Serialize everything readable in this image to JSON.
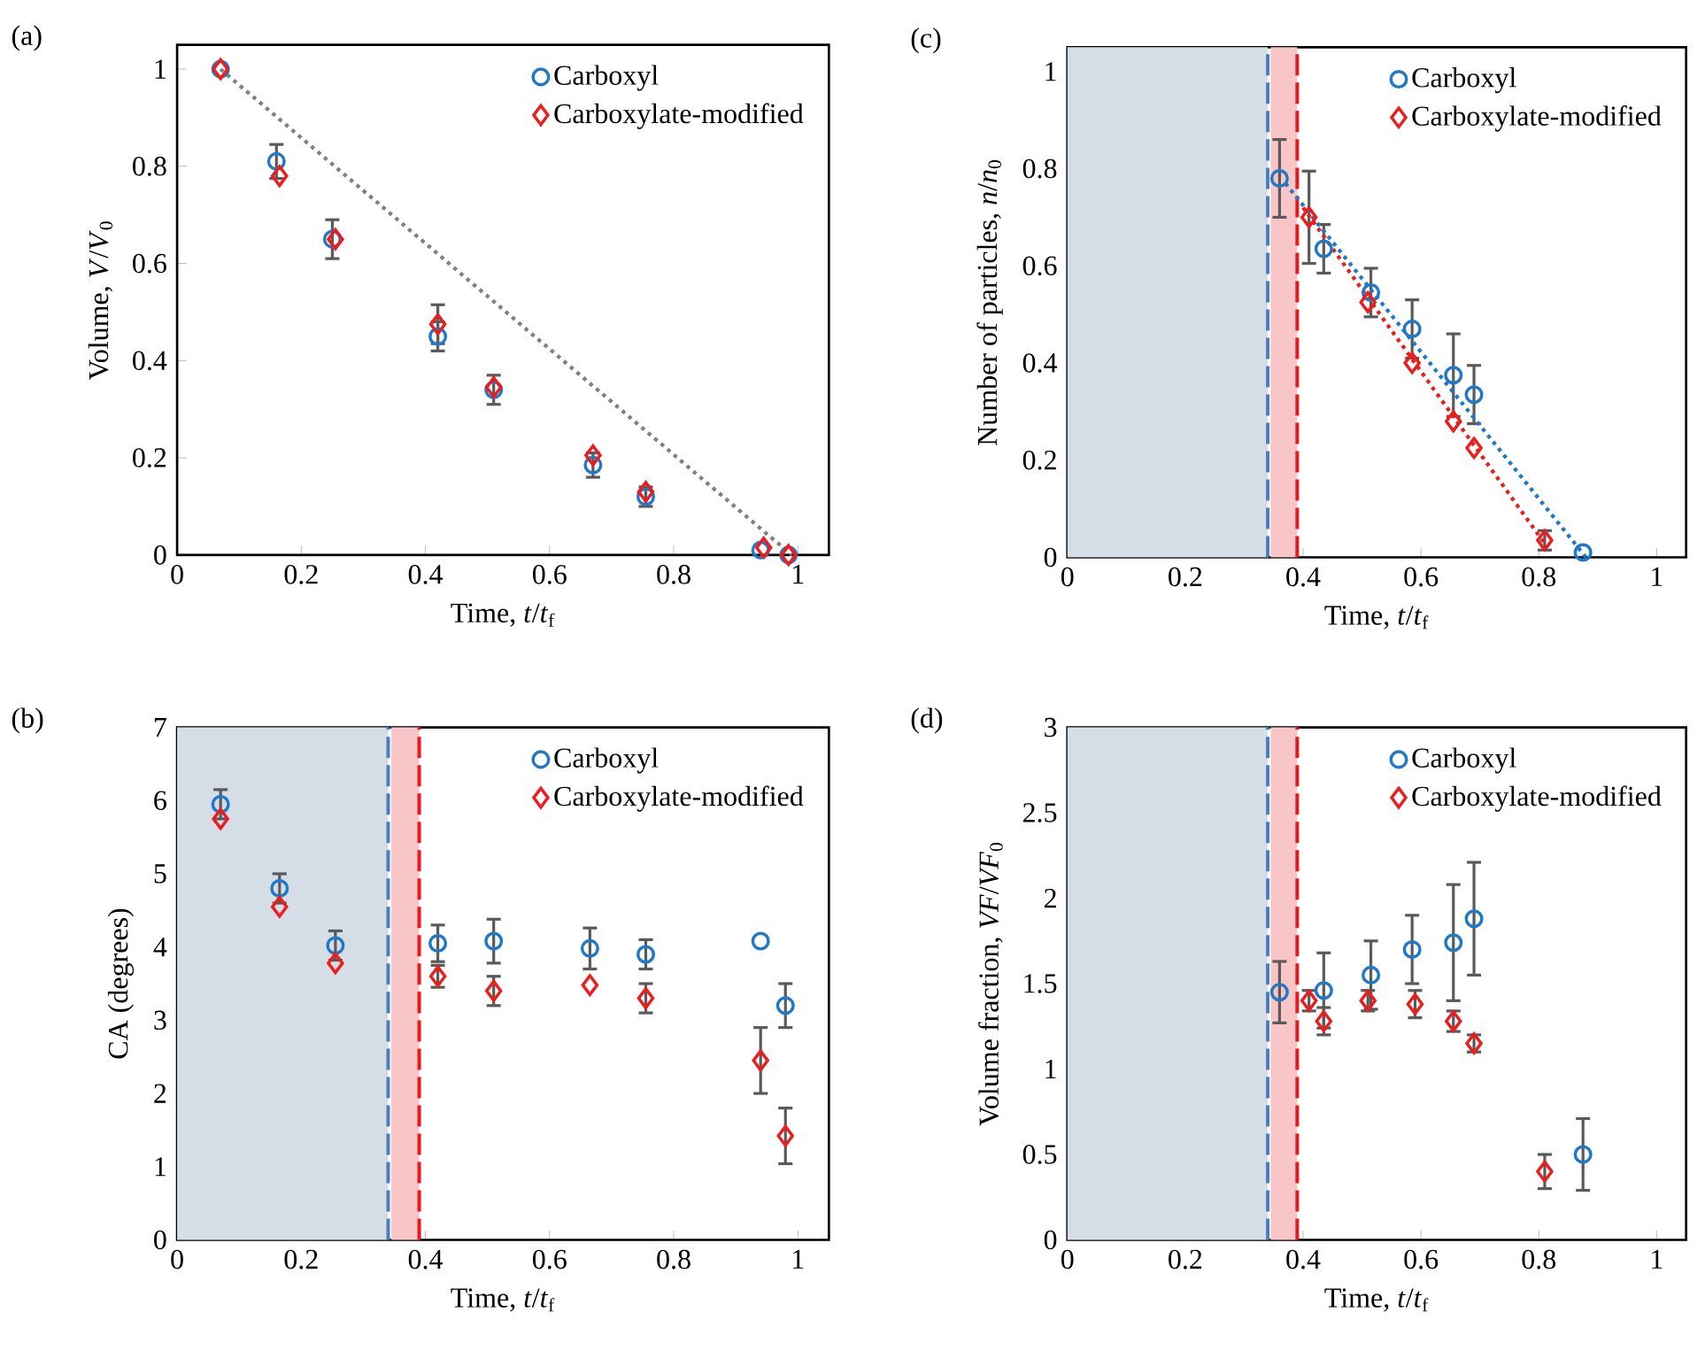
{
  "chart_data": [
    {
      "type": "scatter",
      "title": "(a)",
      "xlabel": "Time, *t*/*t*$_{f}$",
      "ylabel": "Volume, *V*/*V*$_{0}$",
      "xlim": [
        0,
        1.05
      ],
      "ylim": [
        0,
        1.05
      ],
      "xticks": [
        0,
        0.2,
        0.4,
        0.6,
        0.8,
        1
      ],
      "yticks": [
        0,
        0.2,
        0.4,
        0.6,
        0.8,
        1
      ],
      "legend": "top right",
      "series": [
        {
          "name": "Carboxyl",
          "color": "#1f78c8",
          "marker": "circle",
          "x": [
            0.07,
            0.16,
            0.25,
            0.42,
            0.51,
            0.67,
            0.755,
            0.94,
            0.985
          ],
          "values": [
            1.0,
            0.81,
            0.65,
            0.45,
            0.34,
            0.185,
            0.12,
            0.01,
            0.0
          ],
          "errors": [
            null,
            0.035,
            0.04,
            0.03,
            0.03,
            0.025,
            0.02,
            null,
            null
          ]
        },
        {
          "name": "Carboxylate-modified",
          "color": "#ee1c1c",
          "marker": "diamond",
          "x": [
            0.07,
            0.165,
            0.255,
            0.42,
            0.51,
            0.67,
            0.755,
            0.945,
            0.985
          ],
          "values": [
            1.0,
            0.78,
            0.65,
            0.475,
            0.345,
            0.205,
            0.13,
            0.015,
            0.0
          ],
          "errors": [
            null,
            null,
            null,
            0.04,
            null,
            null,
            null,
            null,
            null
          ]
        },
        {
          "type": "line",
          "color": "#808080",
          "line_style": "dotted",
          "marker": "none",
          "x": [
            0.07,
            0.99
          ],
          "values": [
            1.0,
            0.0
          ]
        }
      ]
    },
    {
      "type": "scatter",
      "title": "(b)",
      "xlabel": "Time, *t*/*t*$_{f}$",
      "ylabel": "CA (degrees)",
      "xlim": [
        0,
        1.05
      ],
      "ylim": [
        0,
        7
      ],
      "xticks": [
        0,
        0.2,
        0.4,
        0.6,
        0.8,
        1
      ],
      "yticks": [
        0,
        1,
        2,
        3,
        4,
        5,
        6,
        7
      ],
      "legend": "top right",
      "bands": [
        {
          "axis": "x",
          "from": 0,
          "to": 0.34,
          "color": "#d5dde7"
        },
        {
          "axis": "x",
          "from": 0.345,
          "to": 0.39,
          "color": "#f8c6c6"
        }
      ],
      "ref_lines": [
        {
          "axis": "x",
          "value": 0.34,
          "color": "#4a7ebb",
          "line_style": "dashed"
        },
        {
          "axis": "x",
          "value": 0.39,
          "color": "#e8191b",
          "line_style": "dashed"
        }
      ],
      "series": [
        {
          "name": "Carboxyl",
          "color": "#1f78c8",
          "marker": "circle",
          "x": [
            0.07,
            0.165,
            0.255,
            0.42,
            0.51,
            0.665,
            0.755,
            0.94,
            0.98
          ],
          "values": [
            5.95,
            4.8,
            4.02,
            4.05,
            4.08,
            3.98,
            3.9,
            4.08,
            3.2
          ],
          "errors": [
            0.2,
            0.2,
            0.2,
            0.25,
            0.3,
            0.28,
            0.2,
            null,
            0.3
          ]
        },
        {
          "name": "Carboxylate-modified",
          "color": "#ee1c1c",
          "marker": "diamond",
          "x": [
            0.07,
            0.165,
            0.255,
            0.42,
            0.51,
            0.665,
            0.755,
            0.94,
            0.98
          ],
          "values": [
            5.75,
            4.55,
            3.78,
            3.6,
            3.4,
            3.48,
            3.3,
            2.45,
            1.42
          ],
          "errors": [
            null,
            null,
            null,
            0.15,
            0.2,
            null,
            0.2,
            0.45,
            0.38
          ]
        }
      ]
    },
    {
      "type": "scatter",
      "title": "(c)",
      "xlabel": "Time, *t*/*t*$_{f}$",
      "ylabel": "Number of particles, *n*/*n*$_{0}$",
      "xlim": [
        0,
        1.05
      ],
      "ylim": [
        0,
        1.05
      ],
      "xticks": [
        0,
        0.2,
        0.4,
        0.6,
        0.8,
        1
      ],
      "yticks": [
        0,
        0.2,
        0.4,
        0.6,
        0.8,
        1
      ],
      "legend": "top right",
      "bands": [
        {
          "axis": "x",
          "from": 0,
          "to": 0.34,
          "color": "#d5dde7"
        },
        {
          "axis": "x",
          "from": 0.345,
          "to": 0.39,
          "color": "#f8c6c6"
        }
      ],
      "ref_lines": [
        {
          "axis": "x",
          "value": 0.34,
          "color": "#4a7ebb",
          "line_style": "dashed"
        },
        {
          "axis": "x",
          "value": 0.39,
          "color": "#e8191b",
          "line_style": "dashed"
        }
      ],
      "series": [
        {
          "name": "Carboxyl",
          "color": "#1f78c8",
          "marker": "circle",
          "x": [
            0.36,
            0.435,
            0.515,
            0.585,
            0.655,
            0.69,
            0.875
          ],
          "values": [
            0.78,
            0.635,
            0.545,
            0.47,
            0.375,
            0.335,
            0.01
          ],
          "errors": [
            0.08,
            0.05,
            0.05,
            0.06,
            0.085,
            0.06,
            null
          ]
        },
        {
          "name": "Carboxylate-modified",
          "color": "#ee1c1c",
          "marker": "diamond",
          "x": [
            0.41,
            0.51,
            0.585,
            0.655,
            0.69,
            0.81
          ],
          "values": [
            0.7,
            0.525,
            0.4,
            0.28,
            0.225,
            0.035
          ],
          "errors": [
            0.095,
            null,
            null,
            null,
            null,
            0.02
          ]
        },
        {
          "type": "line",
          "color": "#1f78c8",
          "line_style": "dotted",
          "marker": "none",
          "x": [
            0.37,
            0.88
          ],
          "values": [
            0.77,
            0.0
          ]
        },
        {
          "type": "line",
          "color": "#ee1c1c",
          "line_style": "dotted",
          "marker": "none",
          "x": [
            0.4,
            0.815
          ],
          "values": [
            0.72,
            0.02
          ]
        }
      ]
    },
    {
      "type": "scatter",
      "title": "(d)",
      "xlabel": "Time, *t*/*t*$_{f}$",
      "ylabel": "Volume fraction, *VF*/*VF*$_{0}$",
      "xlim": [
        0,
        1.05
      ],
      "ylim": [
        0,
        3
      ],
      "xticks": [
        0,
        0.2,
        0.4,
        0.6,
        0.8,
        1
      ],
      "yticks": [
        0,
        0.5,
        1,
        1.5,
        2,
        2.5,
        3
      ],
      "legend": "top right",
      "bands": [
        {
          "axis": "x",
          "from": 0,
          "to": 0.34,
          "color": "#d5dde7"
        },
        {
          "axis": "x",
          "from": 0.345,
          "to": 0.39,
          "color": "#f8c6c6"
        }
      ],
      "ref_lines": [
        {
          "axis": "x",
          "value": 0.34,
          "color": "#4a7ebb",
          "line_style": "dashed"
        },
        {
          "axis": "x",
          "value": 0.39,
          "color": "#e8191b",
          "line_style": "dashed"
        }
      ],
      "series": [
        {
          "name": "Carboxyl",
          "color": "#1f78c8",
          "marker": "circle",
          "x": [
            0.36,
            0.435,
            0.515,
            0.585,
            0.655,
            0.69,
            0.875
          ],
          "values": [
            1.45,
            1.46,
            1.55,
            1.7,
            1.74,
            1.88,
            0.5
          ],
          "errors": [
            0.18,
            0.22,
            0.2,
            0.2,
            0.34,
            0.33,
            0.21
          ]
        },
        {
          "name": "Carboxylate-modified",
          "color": "#ee1c1c",
          "marker": "diamond",
          "x": [
            0.41,
            0.435,
            0.51,
            0.59,
            0.655,
            0.69,
            0.81
          ],
          "values": [
            1.4,
            1.28,
            1.4,
            1.38,
            1.28,
            1.15,
            0.4
          ],
          "errors": [
            0.06,
            0.08,
            0.06,
            0.08,
            0.06,
            0.05,
            0.1
          ]
        }
      ]
    }
  ]
}
